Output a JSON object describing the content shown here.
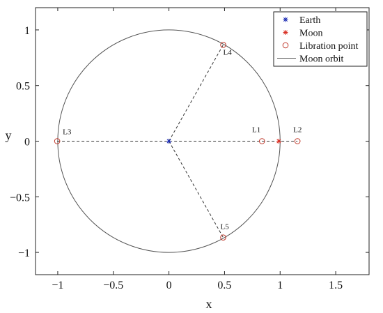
{
  "chart_data": {
    "type": "scatter",
    "xlabel": "x",
    "ylabel": "y",
    "xlim": [
      -1.2,
      1.8
    ],
    "ylim": [
      -1.2,
      1.2
    ],
    "grid": false,
    "xticks": [
      -1,
      -0.5,
      0,
      0.5,
      1,
      1.5
    ],
    "xtick_labels": [
      "−1",
      "−0.5",
      "0",
      "0.5",
      "1",
      "1.5"
    ],
    "yticks": [
      1,
      0.5,
      0,
      -0.5,
      -1
    ],
    "ytick_labels": [
      "1",
      "0.5",
      "0",
      "−0.5",
      "−1"
    ],
    "legend": {
      "position": "top-right",
      "entries": [
        {
          "label": "Earth",
          "marker": "asterisk",
          "color": "#1f2fb5"
        },
        {
          "label": "Moon",
          "marker": "asterisk",
          "color": "#d93025"
        },
        {
          "label": "Libration point",
          "marker": "circle-open",
          "color": "#c0392b"
        },
        {
          "label": "Moon orbit",
          "marker": "line",
          "color": "#555555"
        }
      ]
    },
    "earth": {
      "x": 0,
      "y": 0
    },
    "moon": {
      "x": 0.988,
      "y": 0
    },
    "orbit": {
      "center": [
        0,
        0
      ],
      "radius": 1.0,
      "color": "#555555"
    },
    "libration_points": [
      {
        "name": "L1",
        "x": 0.837,
        "y": 0
      },
      {
        "name": "L2",
        "x": 1.156,
        "y": 0
      },
      {
        "name": "L3",
        "x": -1.005,
        "y": 0
      },
      {
        "name": "L4",
        "x": 0.488,
        "y": 0.866
      },
      {
        "name": "L5",
        "x": 0.488,
        "y": -0.866
      }
    ],
    "dashed_lines": [
      {
        "from": [
          0,
          0
        ],
        "to": [
          0.488,
          0.866
        ]
      },
      {
        "from": [
          0,
          0
        ],
        "to": [
          0.488,
          -0.866
        ]
      },
      {
        "from": [
          -1.005,
          0
        ],
        "to": [
          1.156,
          0
        ]
      }
    ]
  }
}
